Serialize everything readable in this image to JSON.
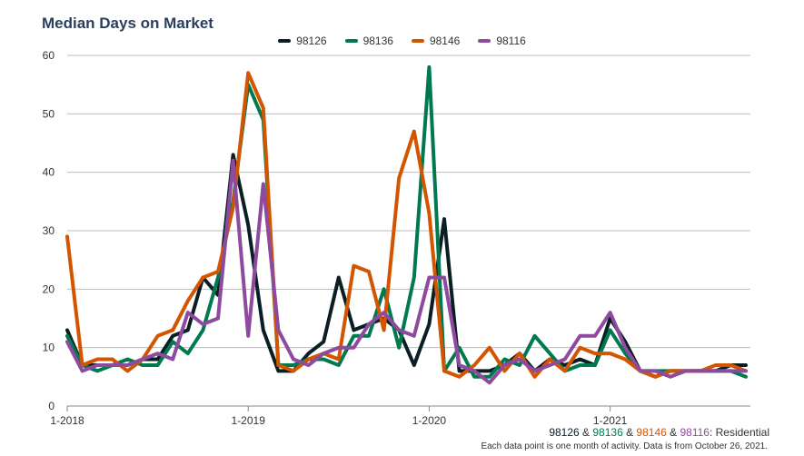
{
  "title": "Median Days on Market",
  "colors": {
    "s98126": "#0a1e24",
    "s98136": "#00794f",
    "s98146": "#d45500",
    "s98116": "#8e4a9e"
  },
  "caption": {
    "z1": "98126",
    "sep1": " & ",
    "z2": "98136",
    "sep2": " & ",
    "z3": "98146",
    "sep3": " & ",
    "z4": "98116",
    "suffix": ": Residential",
    "note": "Each data point is one month of activity. Data is from October 26, 2021."
  },
  "chart_data": {
    "type": "line",
    "title": "Median Days on Market",
    "x_tick_labels": [
      "1-2018",
      "1-2019",
      "1-2020",
      "1-2021"
    ],
    "x_tick_indices": [
      0,
      12,
      24,
      36
    ],
    "ylim": [
      0,
      60
    ],
    "y_ticks": [
      0,
      10,
      20,
      30,
      40,
      50,
      60
    ],
    "grid": true,
    "legend_position": "top",
    "series": [
      {
        "name": "98126",
        "color": "#0a1e24",
        "values": [
          13,
          7,
          7,
          7,
          7,
          8,
          8,
          12,
          13,
          22,
          19,
          43,
          31,
          13,
          6,
          6,
          9,
          11,
          22,
          13,
          14,
          15,
          13,
          7,
          14,
          32,
          6,
          6,
          6,
          7,
          9,
          6,
          8,
          7,
          8,
          7,
          15,
          11,
          6,
          5,
          6,
          6,
          6,
          6,
          7,
          7
        ]
      },
      {
        "name": "98136",
        "color": "#00794f",
        "values": [
          12,
          7,
          6,
          7,
          8,
          7,
          7,
          11,
          9,
          13,
          22,
          35,
          55,
          49,
          7,
          7,
          8,
          8,
          7,
          12,
          12,
          20,
          10,
          22,
          58,
          6,
          10,
          5,
          5,
          8,
          7,
          12,
          9,
          6,
          7,
          7,
          13,
          9,
          6,
          6,
          6,
          6,
          6,
          6,
          6,
          5
        ]
      },
      {
        "name": "98146",
        "color": "#d45500",
        "values": [
          29,
          7,
          8,
          8,
          6,
          8,
          12,
          13,
          18,
          22,
          23,
          34,
          57,
          51,
          7,
          6,
          8,
          9,
          8,
          24,
          23,
          13,
          39,
          47,
          33,
          6,
          5,
          7,
          10,
          6,
          9,
          5,
          8,
          6,
          10,
          9,
          9,
          8,
          6,
          5,
          6,
          6,
          6,
          7,
          7,
          6
        ]
      },
      {
        "name": "98116",
        "color": "#8e4a9e",
        "values": [
          11,
          6,
          7,
          7,
          7,
          8,
          9,
          8,
          16,
          14,
          15,
          42,
          12,
          38,
          13,
          8,
          7,
          9,
          10,
          10,
          14,
          16,
          13,
          12,
          22,
          22,
          7,
          6,
          4,
          7,
          8,
          6,
          7,
          8,
          12,
          12,
          16,
          10,
          6,
          6,
          5,
          6,
          6,
          6,
          6,
          6
        ]
      }
    ]
  }
}
